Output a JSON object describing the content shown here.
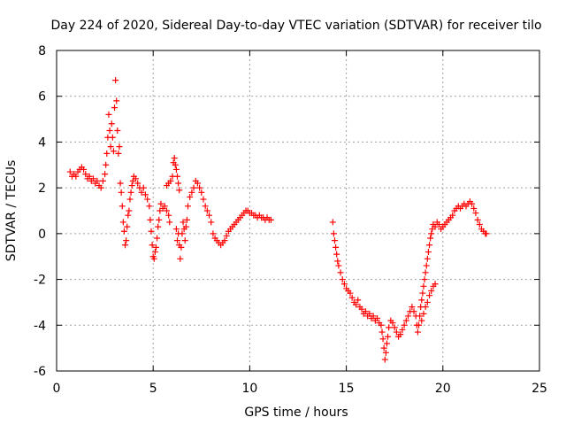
{
  "chart_data": {
    "type": "scatter",
    "title": "Day 224 of 2020, Sidereal Day-to-day VTEC variation (SDTVAR) for receiver tilo",
    "xlabel": "GPS time / hours",
    "ylabel": "SDTVAR / TECUs",
    "xlim": [
      0,
      25
    ],
    "ylim": [
      -6,
      8
    ],
    "x_ticks": [
      0,
      5,
      10,
      15,
      20,
      25
    ],
    "y_ticks": [
      -6,
      -4,
      -2,
      0,
      2,
      4,
      6,
      8
    ],
    "grid": true,
    "marker": "+",
    "color": "#ff0000",
    "series": [
      {
        "name": "SDTVAR",
        "points": [
          [
            0.7,
            2.7
          ],
          [
            0.8,
            2.5
          ],
          [
            0.9,
            2.6
          ],
          [
            1.0,
            2.5
          ],
          [
            1.1,
            2.7
          ],
          [
            1.2,
            2.8
          ],
          [
            1.3,
            2.9
          ],
          [
            1.4,
            2.8
          ],
          [
            1.5,
            2.6
          ],
          [
            1.6,
            2.4
          ],
          [
            1.7,
            2.5
          ],
          [
            1.8,
            2.3
          ],
          [
            1.9,
            2.4
          ],
          [
            2.0,
            2.2
          ],
          [
            2.1,
            2.3
          ],
          [
            2.2,
            2.1
          ],
          [
            2.3,
            2.0
          ],
          [
            2.4,
            2.3
          ],
          [
            2.5,
            2.6
          ],
          [
            2.55,
            3.0
          ],
          [
            2.6,
            3.5
          ],
          [
            2.65,
            4.2
          ],
          [
            2.7,
            5.2
          ],
          [
            2.75,
            4.5
          ],
          [
            2.8,
            3.8
          ],
          [
            2.85,
            4.8
          ],
          [
            2.9,
            4.2
          ],
          [
            2.95,
            3.6
          ],
          [
            3.0,
            5.5
          ],
          [
            3.05,
            6.7
          ],
          [
            3.1,
            5.8
          ],
          [
            3.15,
            4.5
          ],
          [
            3.2,
            3.5
          ],
          [
            3.25,
            3.8
          ],
          [
            3.3,
            2.2
          ],
          [
            3.35,
            1.8
          ],
          [
            3.4,
            1.2
          ],
          [
            3.45,
            0.5
          ],
          [
            3.5,
            0.1
          ],
          [
            3.55,
            -0.5
          ],
          [
            3.6,
            -0.3
          ],
          [
            3.65,
            0.3
          ],
          [
            3.7,
            0.8
          ],
          [
            3.75,
            1.0
          ],
          [
            3.8,
            1.5
          ],
          [
            3.85,
            1.8
          ],
          [
            3.9,
            2.1
          ],
          [
            3.95,
            2.3
          ],
          [
            4.0,
            2.5
          ],
          [
            4.1,
            2.4
          ],
          [
            4.2,
            2.2
          ],
          [
            4.3,
            2.0
          ],
          [
            4.4,
            1.8
          ],
          [
            4.5,
            2.0
          ],
          [
            4.6,
            1.7
          ],
          [
            4.7,
            1.5
          ],
          [
            4.8,
            1.2
          ],
          [
            4.85,
            0.6
          ],
          [
            4.9,
            0.1
          ],
          [
            4.95,
            -0.5
          ],
          [
            5.0,
            -1.0
          ],
          [
            5.05,
            -1.1
          ],
          [
            5.1,
            -0.8
          ],
          [
            5.15,
            -0.6
          ],
          [
            5.2,
            -0.2
          ],
          [
            5.25,
            0.3
          ],
          [
            5.3,
            0.6
          ],
          [
            5.35,
            1.0
          ],
          [
            5.4,
            1.3
          ],
          [
            5.5,
            1.1
          ],
          [
            5.6,
            1.2
          ],
          [
            5.7,
            1.0
          ],
          [
            5.8,
            0.8
          ],
          [
            5.85,
            0.5
          ],
          [
            5.7,
            2.1
          ],
          [
            5.8,
            2.2
          ],
          [
            5.9,
            2.3
          ],
          [
            6.0,
            2.5
          ],
          [
            6.05,
            3.1
          ],
          [
            6.1,
            3.3
          ],
          [
            6.15,
            3.0
          ],
          [
            6.2,
            2.8
          ],
          [
            6.25,
            2.5
          ],
          [
            6.3,
            2.2
          ],
          [
            6.35,
            1.9
          ],
          [
            6.2,
            0.2
          ],
          [
            6.25,
            -0.3
          ],
          [
            6.3,
            0.0
          ],
          [
            6.35,
            -0.5
          ],
          [
            6.4,
            -1.1
          ],
          [
            6.45,
            -0.6
          ],
          [
            6.5,
            0.0
          ],
          [
            6.55,
            0.5
          ],
          [
            6.6,
            0.2
          ],
          [
            6.65,
            -0.3
          ],
          [
            6.7,
            0.3
          ],
          [
            6.75,
            0.6
          ],
          [
            6.8,
            1.2
          ],
          [
            6.9,
            1.6
          ],
          [
            7.0,
            1.8
          ],
          [
            7.1,
            2.0
          ],
          [
            7.2,
            2.3
          ],
          [
            7.3,
            2.2
          ],
          [
            7.4,
            2.0
          ],
          [
            7.5,
            1.8
          ],
          [
            7.6,
            1.5
          ],
          [
            7.7,
            1.2
          ],
          [
            7.8,
            1.0
          ],
          [
            7.9,
            0.8
          ],
          [
            8.0,
            0.5
          ],
          [
            8.1,
            0.0
          ],
          [
            8.2,
            -0.2
          ],
          [
            8.3,
            -0.3
          ],
          [
            8.4,
            -0.4
          ],
          [
            8.5,
            -0.5
          ],
          [
            8.6,
            -0.4
          ],
          [
            8.7,
            -0.3
          ],
          [
            8.8,
            -0.1
          ],
          [
            8.9,
            0.1
          ],
          [
            9.0,
            0.2
          ],
          [
            9.1,
            0.3
          ],
          [
            9.2,
            0.4
          ],
          [
            9.3,
            0.5
          ],
          [
            9.4,
            0.6
          ],
          [
            9.5,
            0.7
          ],
          [
            9.6,
            0.8
          ],
          [
            9.7,
            0.9
          ],
          [
            9.8,
            1.0
          ],
          [
            9.9,
            1.0
          ],
          [
            10.0,
            0.9
          ],
          [
            10.1,
            0.9
          ],
          [
            10.2,
            0.8
          ],
          [
            10.3,
            0.8
          ],
          [
            10.4,
            0.7
          ],
          [
            10.5,
            0.8
          ],
          [
            10.6,
            0.7
          ],
          [
            10.7,
            0.7
          ],
          [
            10.8,
            0.6
          ],
          [
            10.9,
            0.7
          ],
          [
            11.0,
            0.6
          ],
          [
            11.1,
            0.6
          ],
          [
            14.3,
            0.5
          ],
          [
            14.35,
            0.0
          ],
          [
            14.4,
            -0.3
          ],
          [
            14.45,
            -0.6
          ],
          [
            14.5,
            -0.9
          ],
          [
            14.55,
            -1.2
          ],
          [
            14.6,
            -1.4
          ],
          [
            14.7,
            -1.7
          ],
          [
            14.8,
            -2.0
          ],
          [
            14.9,
            -2.2
          ],
          [
            15.0,
            -2.4
          ],
          [
            15.1,
            -2.5
          ],
          [
            15.2,
            -2.6
          ],
          [
            15.3,
            -2.8
          ],
          [
            15.4,
            -3.0
          ],
          [
            15.5,
            -3.1
          ],
          [
            15.6,
            -2.9
          ],
          [
            15.7,
            -3.2
          ],
          [
            15.8,
            -3.3
          ],
          [
            15.9,
            -3.5
          ],
          [
            16.0,
            -3.4
          ],
          [
            16.1,
            -3.6
          ],
          [
            16.2,
            -3.5
          ],
          [
            16.3,
            -3.7
          ],
          [
            16.4,
            -3.6
          ],
          [
            16.5,
            -3.8
          ],
          [
            16.6,
            -3.7
          ],
          [
            16.7,
            -3.9
          ],
          [
            16.8,
            -4.0
          ],
          [
            16.85,
            -4.3
          ],
          [
            16.9,
            -4.6
          ],
          [
            16.95,
            -5.0
          ],
          [
            17.0,
            -5.5
          ],
          [
            17.05,
            -5.2
          ],
          [
            17.1,
            -4.8
          ],
          [
            17.15,
            -4.5
          ],
          [
            17.2,
            -4.1
          ],
          [
            17.3,
            -3.8
          ],
          [
            17.4,
            -3.9
          ],
          [
            17.5,
            -4.1
          ],
          [
            17.6,
            -4.3
          ],
          [
            17.7,
            -4.5
          ],
          [
            17.8,
            -4.4
          ],
          [
            17.9,
            -4.2
          ],
          [
            18.0,
            -4.0
          ],
          [
            18.1,
            -3.8
          ],
          [
            18.2,
            -3.6
          ],
          [
            18.3,
            -3.4
          ],
          [
            18.4,
            -3.2
          ],
          [
            18.5,
            -3.4
          ],
          [
            18.6,
            -3.6
          ],
          [
            18.65,
            -4.0
          ],
          [
            18.7,
            -4.3
          ],
          [
            18.75,
            -4.0
          ],
          [
            18.8,
            -3.6
          ],
          [
            18.85,
            -3.2
          ],
          [
            18.9,
            -2.9
          ],
          [
            18.95,
            -2.6
          ],
          [
            19.0,
            -2.3
          ],
          [
            19.05,
            -2.0
          ],
          [
            19.1,
            -1.7
          ],
          [
            19.15,
            -1.4
          ],
          [
            19.2,
            -1.1
          ],
          [
            19.25,
            -0.8
          ],
          [
            19.3,
            -0.5
          ],
          [
            19.35,
            -0.2
          ],
          [
            19.4,
            0.0
          ],
          [
            19.45,
            0.2
          ],
          [
            19.5,
            0.4
          ],
          [
            18.9,
            -3.8
          ],
          [
            19.0,
            -3.5
          ],
          [
            19.1,
            -3.2
          ],
          [
            19.2,
            -3.0
          ],
          [
            19.3,
            -2.7
          ],
          [
            19.4,
            -2.5
          ],
          [
            19.5,
            -2.3
          ],
          [
            19.6,
            -2.2
          ],
          [
            19.6,
            0.3
          ],
          [
            19.7,
            0.5
          ],
          [
            19.8,
            0.4
          ],
          [
            19.9,
            0.2
          ],
          [
            20.0,
            0.3
          ],
          [
            20.1,
            0.4
          ],
          [
            20.2,
            0.5
          ],
          [
            20.3,
            0.6
          ],
          [
            20.4,
            0.7
          ],
          [
            20.5,
            0.8
          ],
          [
            20.6,
            1.0
          ],
          [
            20.7,
            1.1
          ],
          [
            20.8,
            1.2
          ],
          [
            20.9,
            1.1
          ],
          [
            21.0,
            1.2
          ],
          [
            21.1,
            1.3
          ],
          [
            21.2,
            1.2
          ],
          [
            21.3,
            1.3
          ],
          [
            21.4,
            1.4
          ],
          [
            21.5,
            1.3
          ],
          [
            21.6,
            1.1
          ],
          [
            21.7,
            0.9
          ],
          [
            21.8,
            0.6
          ],
          [
            21.9,
            0.4
          ],
          [
            22.0,
            0.2
          ],
          [
            22.1,
            0.1
          ],
          [
            22.2,
            0.0
          ],
          [
            22.25,
            0.0
          ]
        ]
      }
    ]
  }
}
